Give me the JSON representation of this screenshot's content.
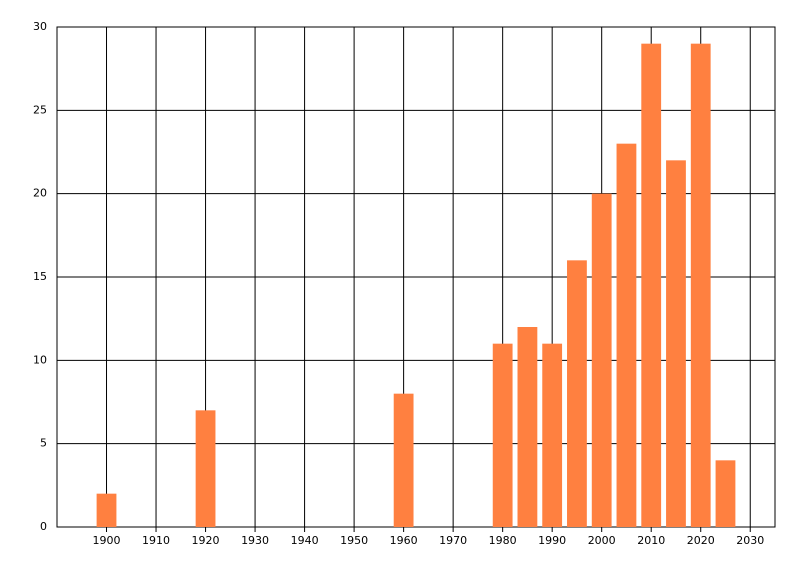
{
  "chart_data": {
    "type": "bar",
    "x": [
      1900,
      1920,
      1960,
      1980,
      1985,
      1990,
      1995,
      2000,
      2005,
      2010,
      2015,
      2020,
      2025
    ],
    "values": [
      2,
      7,
      8,
      11,
      12,
      11,
      16,
      20,
      23,
      29,
      22,
      29,
      4
    ],
    "color": "#ff8040",
    "xlim": [
      1890,
      2035
    ],
    "xticks": [
      1900,
      1910,
      1920,
      1930,
      1940,
      1950,
      1960,
      1970,
      1980,
      1990,
      2000,
      2010,
      2020,
      2030
    ],
    "ylim": [
      0,
      30
    ],
    "yticks": [
      0,
      5,
      10,
      15,
      20,
      25,
      30
    ],
    "grid": true
  }
}
